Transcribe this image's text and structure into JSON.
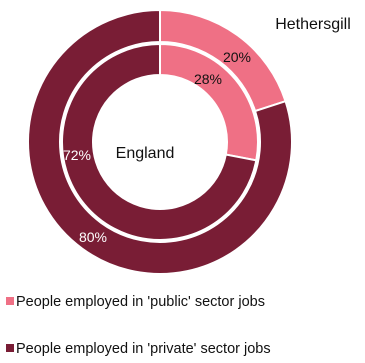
{
  "chart_data": {
    "type": "pie",
    "donut": true,
    "rings": [
      {
        "name": "Hethersgill",
        "position": "outer",
        "values": [
          20,
          80
        ],
        "value_labels": [
          "20%",
          "80%"
        ]
      },
      {
        "name": "England",
        "position": "inner",
        "values": [
          28,
          72
        ],
        "value_labels": [
          "28%",
          "72%"
        ]
      }
    ],
    "categories": [
      "People employed in 'public' sector jobs",
      "People employed in 'private' sector jobs"
    ],
    "colors": [
      "#ef7085",
      "#791d35"
    ],
    "legend_position": "bottom-left"
  }
}
